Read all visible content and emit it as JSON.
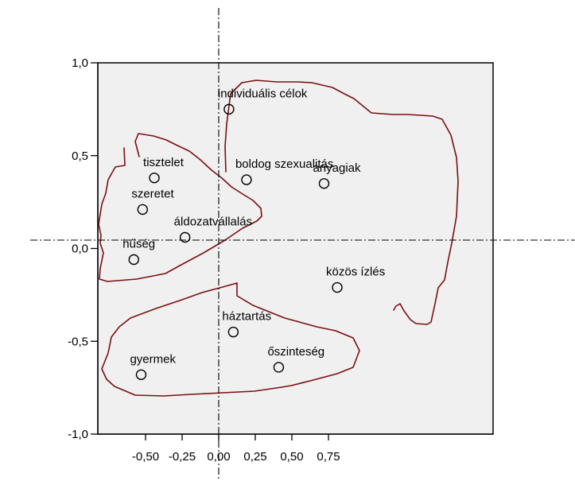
{
  "chart_data": {
    "type": "scatter",
    "title": "",
    "xlabel": "",
    "ylabel": "",
    "xlim": [
      -0.7,
      1.0
    ],
    "ylim": [
      -1.0,
      1.0
    ],
    "x_ticks": [
      -0.5,
      -0.25,
      0.0,
      0.25,
      0.5,
      0.75
    ],
    "x_tick_labels": [
      "-0,50",
      "-0,25",
      "0,00",
      "0,25",
      "0,50",
      "0,75"
    ],
    "y_ticks": [
      1.0,
      0.5,
      0.0,
      -0.5,
      -1.0
    ],
    "y_tick_labels": [
      "1,0",
      "0,5",
      "0,0",
      "-0,5",
      "-1,0"
    ],
    "grid": false,
    "legend": "none",
    "reference_lines": {
      "x": 0.0,
      "y": 0.04,
      "style": "dash-dot"
    },
    "points": [
      {
        "label": "individuális célok",
        "x": 0.07,
        "y": 0.75
      },
      {
        "label": "tisztelet",
        "x": -0.44,
        "y": 0.38
      },
      {
        "label": "boldog szexualitás",
        "x": 0.19,
        "y": 0.37
      },
      {
        "label": "anyagiak",
        "x": 0.72,
        "y": 0.35
      },
      {
        "label": "szeretet",
        "x": -0.52,
        "y": 0.21
      },
      {
        "label": "áldozatvállalás",
        "x": -0.23,
        "y": 0.06
      },
      {
        "label": "hűség",
        "x": -0.58,
        "y": -0.06
      },
      {
        "label": "közös ízlés",
        "x": 0.81,
        "y": -0.21
      },
      {
        "label": "háztartás",
        "x": 0.1,
        "y": -0.45
      },
      {
        "label": "őszinteség",
        "x": 0.41,
        "y": -0.64
      },
      {
        "label": "gyermek",
        "x": -0.53,
        "y": -0.68
      }
    ],
    "colors": {
      "background": "#f0f0f0",
      "cluster_outline": "#7a1010",
      "marker": "#000000"
    }
  }
}
